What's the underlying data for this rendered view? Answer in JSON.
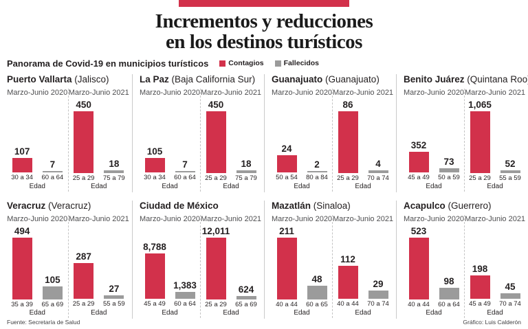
{
  "header": {
    "title_line1": "Incrementos y reducciones",
    "title_line2": "en los destinos turísticos",
    "kicker": "Panorama de Covid-19 en municipios turísticos",
    "legend": [
      {
        "label": "Contagios",
        "color": "#d2314b"
      },
      {
        "label": "Fallecidos",
        "color": "#9b9b9b"
      }
    ]
  },
  "footer": {
    "source": "Fuente: Secretaría de Salud",
    "credit": "Gráfico: Luis Calderón"
  },
  "colors": {
    "Contagios": "#d2314b",
    "Fallecidos": "#9b9b9b",
    "accent_bar": "#d2314b"
  },
  "chart_data": {
    "type": "bar",
    "title": "Panorama de Covid-19 en municipios turísticos",
    "series_names": [
      "Contagios",
      "Fallecidos"
    ],
    "xlabel": "Edad",
    "layout": {
      "grid": "4x2",
      "scale": "per-panel max",
      "legend_position": "top"
    },
    "panels": [
      {
        "city": "Puerto Vallarta",
        "state": "(Jalisco)",
        "periods": [
          {
            "label": "Marzo-Junio 2020",
            "bars": [
              {
                "series": "Contagios",
                "value": 107,
                "value_label": "107",
                "age": "30 a 34"
              },
              {
                "series": "Fallecidos",
                "value": 7,
                "value_label": "7",
                "age": "60 a 64"
              }
            ]
          },
          {
            "label": "Marzo-Junio 2021",
            "bars": [
              {
                "series": "Contagios",
                "value": 450,
                "value_label": "450",
                "age": "25 a 29"
              },
              {
                "series": "Fallecidos",
                "value": 18,
                "value_label": "18",
                "age": "75 a 79"
              }
            ]
          }
        ]
      },
      {
        "city": "La Paz",
        "state": "(Baja California Sur)",
        "periods": [
          {
            "label": "Marzo-Junio 2020",
            "bars": [
              {
                "series": "Contagios",
                "value": 105,
                "value_label": "105",
                "age": "30 a 34"
              },
              {
                "series": "Fallecidos",
                "value": 7,
                "value_label": "7",
                "age": "60 a 64"
              }
            ]
          },
          {
            "label": "Marzo-Junio 2021",
            "bars": [
              {
                "series": "Contagios",
                "value": 450,
                "value_label": "450",
                "age": "25 a 29"
              },
              {
                "series": "Fallecidos",
                "value": 18,
                "value_label": "18",
                "age": "75 a 79"
              }
            ]
          }
        ]
      },
      {
        "city": "Guanajuato",
        "state": "(Guanajuato)",
        "periods": [
          {
            "label": "Marzo-Junio 2020",
            "bars": [
              {
                "series": "Contagios",
                "value": 24,
                "value_label": "24",
                "age": "50 a 54"
              },
              {
                "series": "Fallecidos",
                "value": 2,
                "value_label": "2",
                "age": "80 a 84"
              }
            ]
          },
          {
            "label": "Marzo-Junio 2021",
            "bars": [
              {
                "series": "Contagios",
                "value": 86,
                "value_label": "86",
                "age": "25 a 29"
              },
              {
                "series": "Fallecidos",
                "value": 4,
                "value_label": "4",
                "age": "70 a 74"
              }
            ]
          }
        ]
      },
      {
        "city": "Benito Juárez",
        "state": "(Quintana Roo)",
        "periods": [
          {
            "label": "Marzo-Junio 2020",
            "bars": [
              {
                "series": "Contagios",
                "value": 352,
                "value_label": "352",
                "age": "45 a 49"
              },
              {
                "series": "Fallecidos",
                "value": 73,
                "value_label": "73",
                "age": "50 a 59"
              }
            ]
          },
          {
            "label": "Marzo-Junio 2021",
            "bars": [
              {
                "series": "Contagios",
                "value": 1065,
                "value_label": "1,065",
                "age": "25 a 29"
              },
              {
                "series": "Fallecidos",
                "value": 52,
                "value_label": "52",
                "age": "55 a 59"
              }
            ]
          }
        ]
      },
      {
        "city": "Veracruz",
        "state": "(Veracruz)",
        "periods": [
          {
            "label": "Marzo-Junio 2020",
            "bars": [
              {
                "series": "Contagios",
                "value": 494,
                "value_label": "494",
                "age": "35 a 39"
              },
              {
                "series": "Fallecidos",
                "value": 105,
                "value_label": "105",
                "age": "65 a 69"
              }
            ]
          },
          {
            "label": "Marzo-Junio 2021",
            "bars": [
              {
                "series": "Contagios",
                "value": 287,
                "value_label": "287",
                "age": "25 a 29"
              },
              {
                "series": "Fallecidos",
                "value": 27,
                "value_label": "27",
                "age": "55 a 59"
              }
            ]
          }
        ]
      },
      {
        "city": "Ciudad de México",
        "state": "",
        "periods": [
          {
            "label": "Marzo-Junio 2020",
            "bars": [
              {
                "series": "Contagios",
                "value": 8788,
                "value_label": "8,788",
                "age": "45 a 49"
              },
              {
                "series": "Fallecidos",
                "value": 1383,
                "value_label": "1,383",
                "age": "60 a 64"
              }
            ]
          },
          {
            "label": "Marzo-Junio 2021",
            "bars": [
              {
                "series": "Contagios",
                "value": 12011,
                "value_label": "12,011",
                "age": "25 a 29"
              },
              {
                "series": "Fallecidos",
                "value": 624,
                "value_label": "624",
                "age": "65 a 69"
              }
            ]
          }
        ]
      },
      {
        "city": "Mazatlán",
        "state": "(Sinaloa)",
        "periods": [
          {
            "label": "Marzo-Junio 2020",
            "bars": [
              {
                "series": "Contagios",
                "value": 211,
                "value_label": "211",
                "age": "40 a 44"
              },
              {
                "series": "Fallecidos",
                "value": 48,
                "value_label": "48",
                "age": "60 a 65"
              }
            ]
          },
          {
            "label": "Marzo-Junio 2021",
            "bars": [
              {
                "series": "Contagios",
                "value": 112,
                "value_label": "112",
                "age": "40 a 44"
              },
              {
                "series": "Fallecidos",
                "value": 29,
                "value_label": "29",
                "age": "70 a 74"
              }
            ]
          }
        ]
      },
      {
        "city": "Acapulco",
        "state": "(Guerrero)",
        "periods": [
          {
            "label": "Marzo-Junio 2020",
            "bars": [
              {
                "series": "Contagios",
                "value": 523,
                "value_label": "523",
                "age": "40 a 44"
              },
              {
                "series": "Fallecidos",
                "value": 98,
                "value_label": "98",
                "age": "60 a 64"
              }
            ]
          },
          {
            "label": "Marzo-Junio 2021",
            "bars": [
              {
                "series": "Contagios",
                "value": 198,
                "value_label": "198",
                "age": "45 a 49"
              },
              {
                "series": "Fallecidos",
                "value": 45,
                "value_label": "45",
                "age": "70 a 74"
              }
            ]
          }
        ]
      }
    ]
  }
}
